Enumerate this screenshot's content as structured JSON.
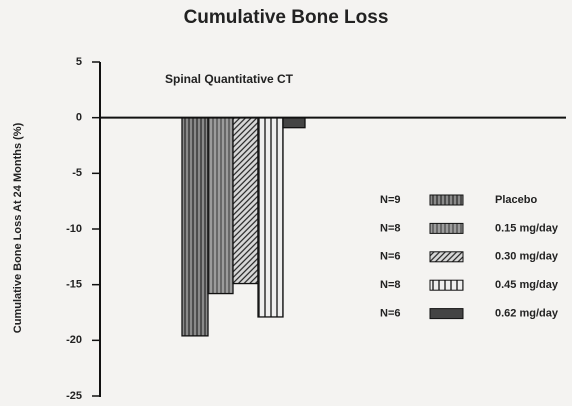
{
  "chart_data": {
    "type": "bar",
    "title": "Cumulative Bone Loss",
    "subtitle": "Spinal Quantitative CT",
    "y_label": "Cumulative Bone Loss At 24 Months (%)",
    "categories": [
      "Placebo",
      "0.15 mg/day",
      "0.30 mg/day",
      "0.45 mg/day",
      "0.62 mg/day"
    ],
    "n_labels": [
      "N=9",
      "N=8",
      "N=6",
      "N=8",
      "N=6"
    ],
    "values": [
      -19.6,
      -15.8,
      -14.9,
      -17.9,
      -0.9
    ],
    "colors": [
      "#8a8a8a",
      "#9c9c9c",
      "#d8d8d8",
      "#eeeeee",
      "#444444"
    ],
    "ylim": [
      -25,
      5
    ],
    "yticks": [
      5,
      0,
      -5,
      -10,
      -15,
      -20,
      -25
    ]
  }
}
